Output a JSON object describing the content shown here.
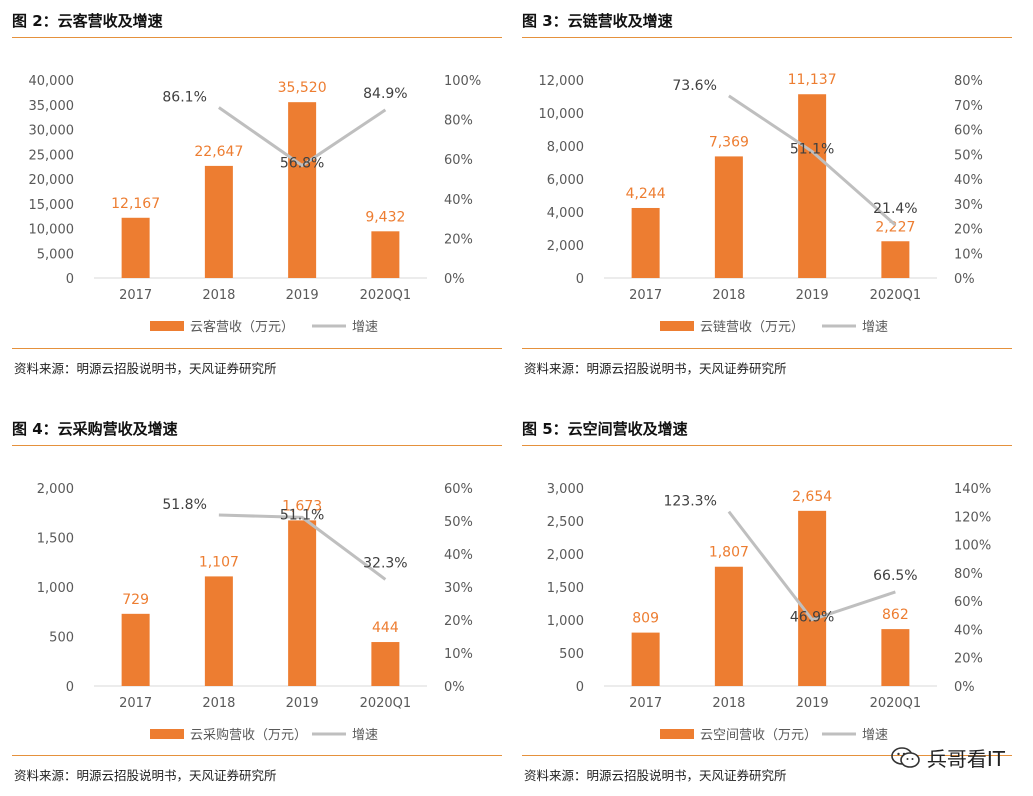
{
  "colors": {
    "bar": "#ed7d31",
    "line": "#bfbfbf",
    "rule": "#e5913c",
    "axis": "#d9d9d9",
    "text": "#595959"
  },
  "watermark": {
    "text": "兵哥看IT",
    "icon": "wechat-icon"
  },
  "panels": [
    {
      "title": "图 2：云客营收及增速",
      "source": "资料来源：明源云招股说明书，天风证券研究所",
      "chart_data": {
        "type": "bar",
        "categories": [
          "2017",
          "2018",
          "2019",
          "2020Q1"
        ],
        "bar_labels": [
          "12,167",
          "22,647",
          "35,520",
          "9,432"
        ],
        "values": [
          12167,
          22647,
          35520,
          9432
        ],
        "growth": [
          null,
          86.1,
          56.8,
          84.9
        ],
        "growth_labels": [
          "",
          "86.1%",
          "56.8%",
          "84.9%"
        ],
        "ylim": [
          0,
          40000
        ],
        "yticks": [
          "0",
          "5,000",
          "10,000",
          "15,000",
          "20,000",
          "25,000",
          "30,000",
          "35,000",
          "40,000"
        ],
        "y2lim": [
          0,
          100
        ],
        "y2ticks": [
          "0%",
          "20%",
          "40%",
          "60%",
          "80%",
          "100%"
        ],
        "legend": [
          "云客营收（万元）",
          "增速"
        ]
      }
    },
    {
      "title": "图 3：云链营收及增速",
      "source": "资料来源：明源云招股说明书，天风证券研究所",
      "chart_data": {
        "type": "bar",
        "categories": [
          "2017",
          "2018",
          "2019",
          "2020Q1"
        ],
        "bar_labels": [
          "4,244",
          "7,369",
          "11,137",
          "2,227"
        ],
        "values": [
          4244,
          7369,
          11137,
          2227
        ],
        "growth": [
          null,
          73.6,
          51.1,
          21.4
        ],
        "growth_labels": [
          "",
          "73.6%",
          "51.1%",
          "21.4%"
        ],
        "ylim": [
          0,
          12000
        ],
        "yticks": [
          "0",
          "2,000",
          "4,000",
          "6,000",
          "8,000",
          "10,000",
          "12,000"
        ],
        "y2lim": [
          0,
          80
        ],
        "y2ticks": [
          "0%",
          "10%",
          "20%",
          "30%",
          "40%",
          "50%",
          "60%",
          "70%",
          "80%"
        ],
        "legend": [
          "云链营收（万元）",
          "增速"
        ]
      }
    },
    {
      "title": "图 4：云采购营收及增速",
      "source": "资料来源：明源云招股说明书，天风证券研究所",
      "chart_data": {
        "type": "bar",
        "categories": [
          "2017",
          "2018",
          "2019",
          "2020Q1"
        ],
        "bar_labels": [
          "729",
          "1,107",
          "1,673",
          "444"
        ],
        "values": [
          729,
          1107,
          1673,
          444
        ],
        "growth": [
          null,
          51.8,
          51.1,
          32.3
        ],
        "growth_labels": [
          "",
          "51.8%",
          "51.1%",
          "32.3%"
        ],
        "ylim": [
          0,
          2000
        ],
        "yticks": [
          "0",
          "500",
          "1,000",
          "1,500",
          "2,000"
        ],
        "y2lim": [
          0,
          60
        ],
        "y2ticks": [
          "0%",
          "10%",
          "20%",
          "30%",
          "40%",
          "50%",
          "60%"
        ],
        "legend": [
          "云采购营收（万元）",
          "增速"
        ]
      }
    },
    {
      "title": "图 5：云空间营收及增速",
      "source": "资料来源：明源云招股说明书，天风证券研究所",
      "chart_data": {
        "type": "bar",
        "categories": [
          "2017",
          "2018",
          "2019",
          "2020Q1"
        ],
        "bar_labels": [
          "809",
          "1,807",
          "2,654",
          "862"
        ],
        "values": [
          809,
          1807,
          2654,
          862
        ],
        "growth": [
          null,
          123.3,
          46.9,
          66.5
        ],
        "growth_labels": [
          "",
          "123.3%",
          "46.9%",
          "66.5%"
        ],
        "ylim": [
          0,
          3000
        ],
        "yticks": [
          "0",
          "500",
          "1,000",
          "1,500",
          "2,000",
          "2,500",
          "3,000"
        ],
        "y2lim": [
          0,
          140
        ],
        "y2ticks": [
          "0%",
          "20%",
          "40%",
          "60%",
          "80%",
          "100%",
          "120%",
          "140%"
        ],
        "legend": [
          "云空间营收（万元）",
          "增速"
        ]
      }
    }
  ]
}
